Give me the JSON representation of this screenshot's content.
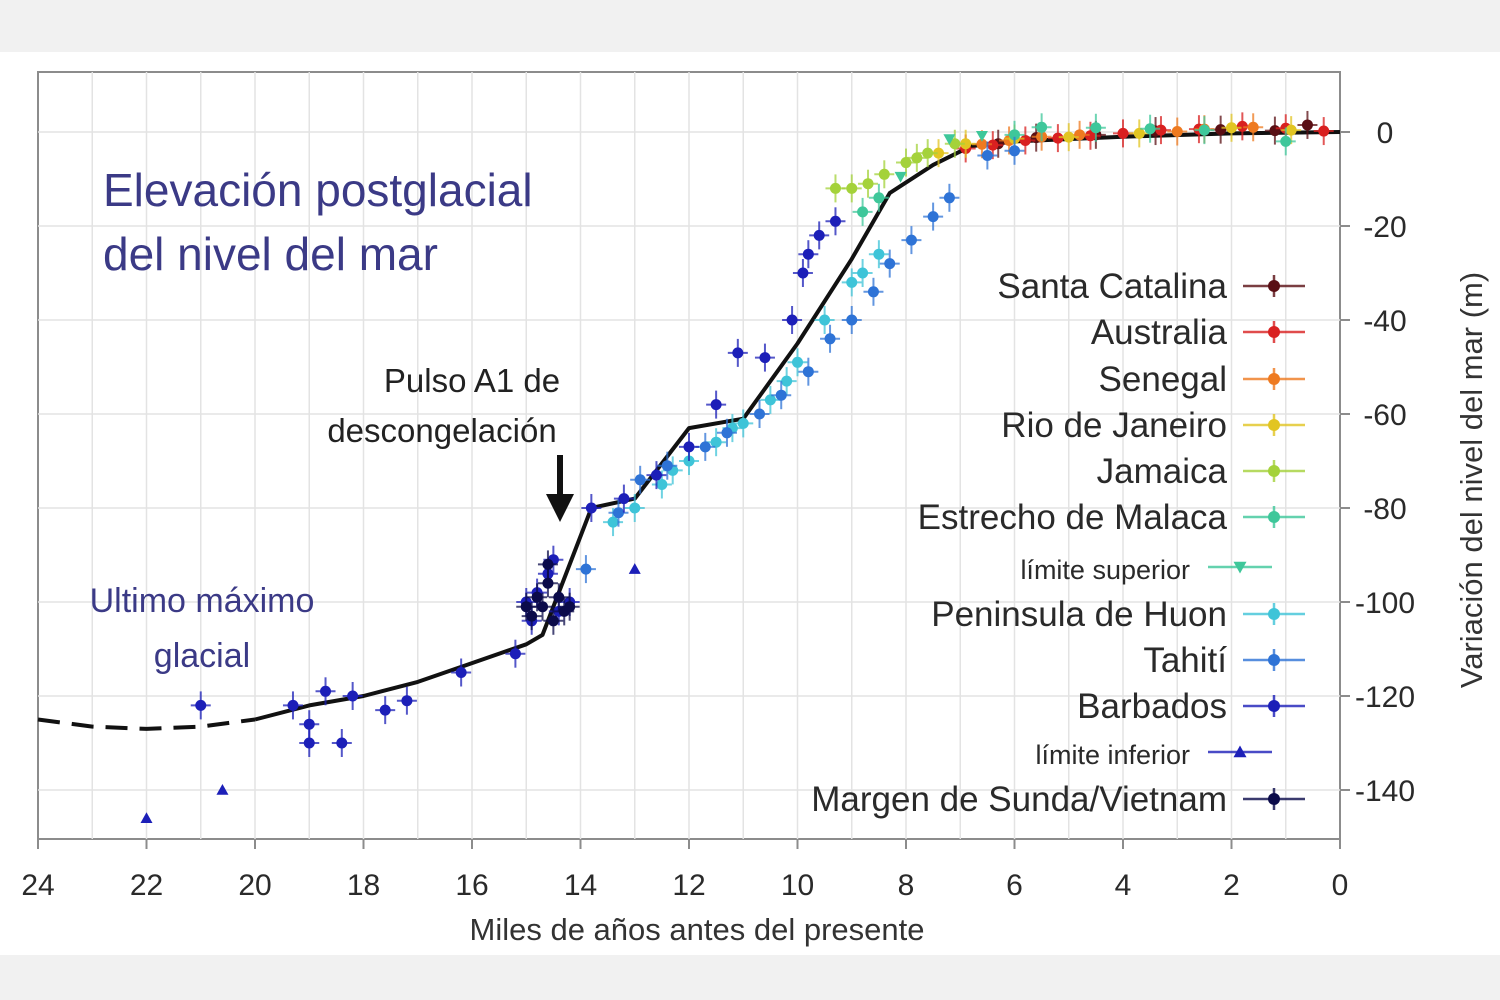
{
  "chart_data": {
    "type": "scatter",
    "title": "Elevación postglacial\ndel nivel del mar",
    "xlabel": "Miles de años antes del presente",
    "ylabel": "Variación del nivel del mar (m)",
    "xlim": [
      24,
      0
    ],
    "ylim": [
      -150,
      10
    ],
    "x_ticks": [
      24,
      22,
      20,
      18,
      16,
      14,
      12,
      10,
      8,
      6,
      4,
      2,
      0
    ],
    "y_ticks": [
      0,
      -20,
      -40,
      -60,
      -80,
      -100,
      -120,
      -140
    ],
    "grid": true,
    "legend_position": "right",
    "annotations": [
      {
        "id": "lgm",
        "text": "Ultimo máximo\nglacial",
        "x": 21.5,
        "y": -103
      },
      {
        "id": "mwp1a",
        "text": "Pulso A1 de\ndescongelación",
        "x": 14.5,
        "y": -84
      }
    ],
    "trend_line": {
      "solid": [
        [
          20,
          -125
        ],
        [
          19,
          -122
        ],
        [
          18,
          -120
        ],
        [
          17,
          -117
        ],
        [
          16,
          -113
        ],
        [
          15,
          -109
        ],
        [
          14.7,
          -107
        ],
        [
          13.8,
          -80
        ],
        [
          13,
          -78
        ],
        [
          12,
          -63
        ],
        [
          11,
          -61
        ],
        [
          10,
          -45
        ],
        [
          9,
          -27
        ],
        [
          8.3,
          -13
        ],
        [
          7.5,
          -7
        ],
        [
          6.8,
          -3
        ],
        [
          6,
          -2
        ],
        [
          4,
          -1
        ],
        [
          2,
          -0.3
        ],
        [
          0,
          0
        ]
      ],
      "dashed": [
        [
          24,
          -125
        ],
        [
          23,
          -126.5
        ],
        [
          22,
          -127
        ],
        [
          21,
          -126.5
        ],
        [
          20,
          -125
        ]
      ]
    },
    "series": [
      {
        "name": "Santa Catalina",
        "color": "#5a0f14",
        "marker": "circle",
        "points": [
          [
            0.6,
            1.5
          ],
          [
            1.2,
            0.3
          ],
          [
            2.2,
            0.5
          ],
          [
            3.4,
            0.2
          ],
          [
            4.5,
            -0.6
          ],
          [
            5.6,
            -1.2
          ],
          [
            6.3,
            -2.5
          ]
        ]
      },
      {
        "name": "Australia",
        "color": "#d92020",
        "marker": "circle",
        "points": [
          [
            0.3,
            0.2
          ],
          [
            1.0,
            0.8
          ],
          [
            1.8,
            1.2
          ],
          [
            2.6,
            0.6
          ],
          [
            3.3,
            0.4
          ],
          [
            4.0,
            -0.3
          ],
          [
            4.6,
            -0.8
          ],
          [
            5.2,
            -1.3
          ],
          [
            5.8,
            -1.8
          ],
          [
            6.4,
            -2.8
          ],
          [
            6.9,
            -3.5
          ]
        ]
      },
      {
        "name": "Senegal",
        "color": "#ee7a20",
        "marker": "circle",
        "points": [
          [
            1.6,
            1.0
          ],
          [
            2.5,
            0.6
          ],
          [
            3.0,
            0.1
          ],
          [
            4.8,
            -0.6
          ],
          [
            5.5,
            -1.0
          ],
          [
            6.1,
            -1.8
          ],
          [
            6.6,
            -2.6
          ]
        ]
      },
      {
        "name": "Rio de Janeiro",
        "color": "#e2c522",
        "marker": "circle",
        "points": [
          [
            0.9,
            0.4
          ],
          [
            2.0,
            0.9
          ],
          [
            3.7,
            -0.3
          ],
          [
            5.0,
            -1.1
          ],
          [
            6.0,
            -1.4
          ],
          [
            6.9,
            -2.5
          ],
          [
            7.4,
            -4.5
          ]
        ]
      },
      {
        "name": "Jamaica",
        "color": "#a4d23a",
        "marker": "circle",
        "points": [
          [
            7.1,
            -2.5
          ],
          [
            7.6,
            -4.5
          ],
          [
            8.0,
            -6.5
          ],
          [
            8.4,
            -9.0
          ],
          [
            8.7,
            -11
          ],
          [
            9.0,
            -12
          ],
          [
            9.3,
            -12
          ],
          [
            7.8,
            -5.5
          ]
        ]
      },
      {
        "name": "Estrecho de Malaca",
        "color": "#3ec79a",
        "marker": "circle",
        "points": [
          [
            6.0,
            -0.6
          ],
          [
            5.5,
            1.0
          ],
          [
            4.5,
            0.9
          ],
          [
            3.5,
            0.7
          ],
          [
            2.5,
            0.4
          ],
          [
            1.0,
            -2.0
          ],
          [
            8.5,
            -14
          ],
          [
            8.8,
            -17
          ]
        ]
      },
      {
        "name": "límite superior",
        "color": "#3ec79a",
        "marker": "triangle-down",
        "points": [
          [
            7.2,
            -1.5
          ],
          [
            6.6,
            -0.8
          ],
          [
            8.1,
            -9.5
          ]
        ]
      },
      {
        "name": "Peninsula de Huon",
        "color": "#3ec4d8",
        "marker": "circle",
        "points": [
          [
            8.5,
            -26
          ],
          [
            9.0,
            -32
          ],
          [
            9.5,
            -40
          ],
          [
            10.0,
            -49
          ],
          [
            10.5,
            -57
          ],
          [
            11.0,
            -62
          ],
          [
            11.5,
            -66
          ],
          [
            12.0,
            -70
          ],
          [
            12.5,
            -75
          ],
          [
            13.0,
            -80
          ],
          [
            13.4,
            -83
          ],
          [
            8.8,
            -30
          ],
          [
            10.2,
            -53
          ],
          [
            11.2,
            -63
          ],
          [
            12.3,
            -72
          ]
        ]
      },
      {
        "name": "Tahití",
        "color": "#2e73d6",
        "marker": "circle",
        "points": [
          [
            6.5,
            -5
          ],
          [
            6.0,
            -4
          ],
          [
            7.2,
            -14
          ],
          [
            7.5,
            -18
          ],
          [
            7.9,
            -23
          ],
          [
            8.3,
            -28
          ],
          [
            8.6,
            -34
          ],
          [
            9.0,
            -40
          ],
          [
            9.4,
            -44
          ],
          [
            9.8,
            -51
          ],
          [
            10.3,
            -56
          ],
          [
            10.7,
            -60
          ],
          [
            11.3,
            -64
          ],
          [
            11.7,
            -67
          ],
          [
            12.4,
            -71
          ],
          [
            12.9,
            -74
          ],
          [
            13.3,
            -81
          ],
          [
            13.9,
            -93
          ]
        ]
      },
      {
        "name": "Barbados",
        "color": "#1c1fb8",
        "marker": "circle",
        "points": [
          [
            9.6,
            -22
          ],
          [
            9.9,
            -30
          ],
          [
            10.1,
            -40
          ],
          [
            10.6,
            -48
          ],
          [
            11.1,
            -47
          ],
          [
            12.0,
            -67
          ],
          [
            12.6,
            -73
          ],
          [
            13.2,
            -78
          ],
          [
            14.5,
            -91
          ],
          [
            14.6,
            -94
          ],
          [
            14.8,
            -98
          ],
          [
            15.0,
            -100
          ],
          [
            14.4,
            -102
          ],
          [
            14.2,
            -100
          ],
          [
            14.9,
            -104
          ],
          [
            15.2,
            -111
          ],
          [
            16.2,
            -115
          ],
          [
            17.2,
            -121
          ],
          [
            17.6,
            -123
          ],
          [
            18.2,
            -120
          ],
          [
            18.7,
            -119
          ],
          [
            19.0,
            -126
          ],
          [
            19.3,
            -122
          ],
          [
            18.4,
            -130
          ],
          [
            19.0,
            -130
          ],
          [
            21.0,
            -122
          ],
          [
            13.8,
            -80
          ],
          [
            11.5,
            -58
          ],
          [
            9.8,
            -26
          ],
          [
            9.3,
            -19
          ]
        ]
      },
      {
        "name": "límite inferior",
        "color": "#1c1fb8",
        "marker": "triangle",
        "points": [
          [
            22.0,
            -146
          ],
          [
            20.6,
            -140
          ],
          [
            13.0,
            -93
          ]
        ]
      },
      {
        "name": "Margen de Sunda/Vietnam",
        "color": "#0b0b4a",
        "marker": "circle",
        "points": [
          [
            14.6,
            -96
          ],
          [
            14.7,
            -101
          ],
          [
            14.3,
            -102
          ],
          [
            14.9,
            -103
          ],
          [
            14.4,
            -99
          ],
          [
            14.8,
            -99
          ],
          [
            14.5,
            -104
          ],
          [
            15.0,
            -101
          ],
          [
            14.6,
            -92
          ],
          [
            14.2,
            -101
          ]
        ]
      }
    ]
  },
  "legend_items": [
    {
      "label": "Santa Catalina",
      "color": "#5a0f14",
      "marker": "circle",
      "size": "big"
    },
    {
      "label": "Australia",
      "color": "#d92020",
      "marker": "circle",
      "size": "big"
    },
    {
      "label": "Senegal",
      "color": "#ee7a20",
      "marker": "circle",
      "size": "big"
    },
    {
      "label": "Rio de Janeiro",
      "color": "#e2c522",
      "marker": "circle",
      "size": "big"
    },
    {
      "label": "Jamaica",
      "color": "#a4d23a",
      "marker": "circle",
      "size": "big"
    },
    {
      "label": "Estrecho de Malaca",
      "color": "#3ec79a",
      "marker": "circle",
      "size": "big"
    },
    {
      "label": "límite superior",
      "color": "#3ec79a",
      "marker": "triangle-down",
      "size": "small"
    },
    {
      "label": "Peninsula de Huon",
      "color": "#3ec4d8",
      "marker": "circle",
      "size": "big"
    },
    {
      "label": "Tahití",
      "color": "#2e73d6",
      "marker": "circle",
      "size": "big"
    },
    {
      "label": "Barbados",
      "color": "#1c1fb8",
      "marker": "circle",
      "size": "big"
    },
    {
      "label": "límite inferior",
      "color": "#1c1fb8",
      "marker": "triangle",
      "size": "small"
    },
    {
      "label": "Margen de Sunda/Vietnam",
      "color": "#0b0b4a",
      "marker": "circle",
      "size": "big"
    }
  ]
}
